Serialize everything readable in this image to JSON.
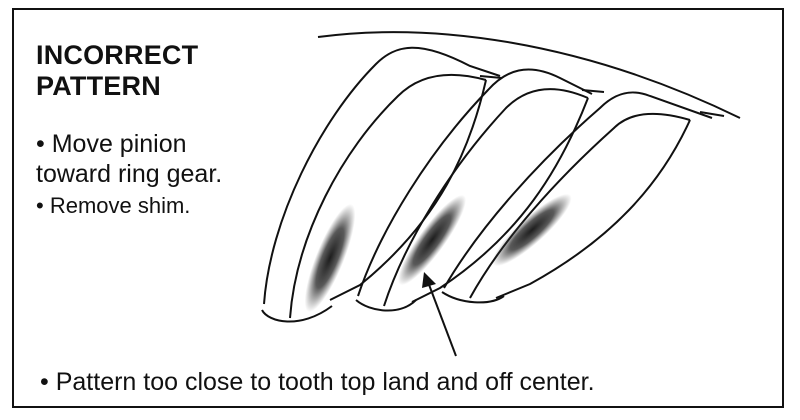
{
  "title": {
    "line1": "INCORRECT",
    "line2": "PATTERN"
  },
  "steps": [
    {
      "bullet": "•",
      "line1": "Move pinion",
      "line2": "toward ring gear."
    },
    {
      "bullet": "•",
      "line1": "Remove shim."
    }
  ],
  "note": {
    "bullet": "•",
    "text": "Pattern too close to tooth top land and off center."
  }
}
